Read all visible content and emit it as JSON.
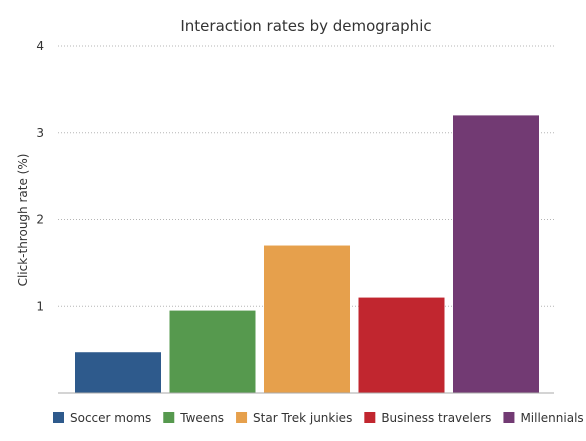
{
  "chart_data": {
    "type": "bar",
    "title": "Interaction rates by demographic",
    "xlabel": "",
    "ylabel": "Click-through rate (%)",
    "ylim": [
      0,
      4
    ],
    "yticks": [
      "1",
      "2",
      "3",
      "4"
    ],
    "grid": true,
    "legend_position": "bottom",
    "categories": [
      "Soccer moms",
      "Tweens",
      "Star Trek junkies",
      "Business travelers",
      "Millennials"
    ],
    "values": [
      0.47,
      0.95,
      1.7,
      1.1,
      3.2
    ],
    "colors": [
      "#2e5a8c",
      "#56994e",
      "#e6a04c",
      "#c1262f",
      "#723a73"
    ]
  }
}
